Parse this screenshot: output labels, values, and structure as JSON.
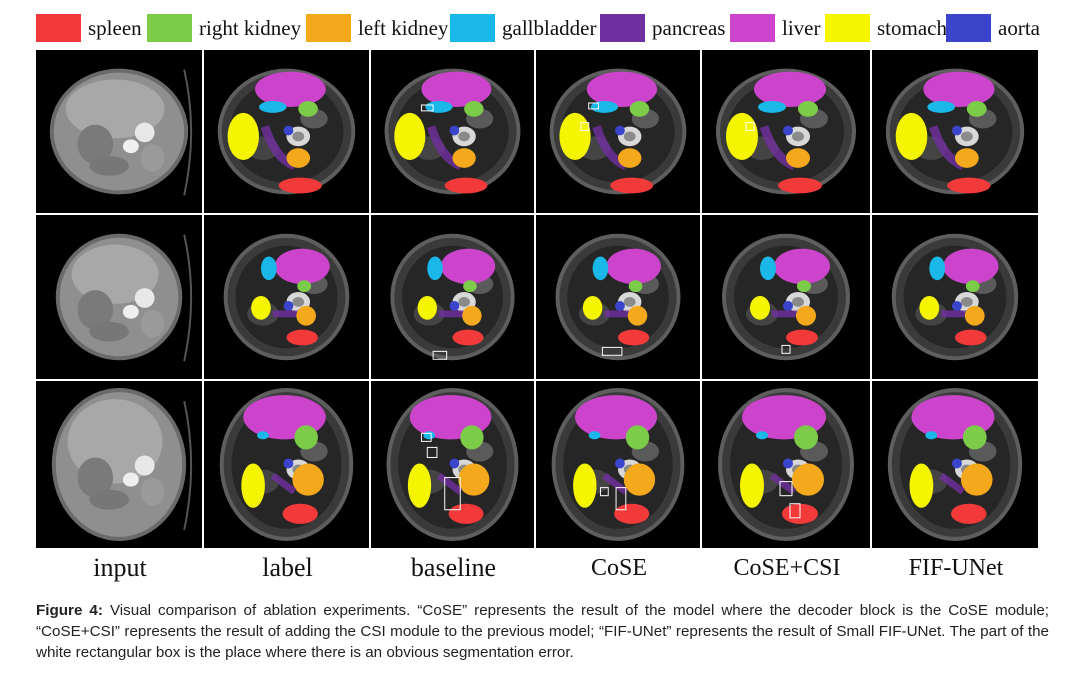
{
  "legend": [
    {
      "label": "spleen",
      "color": "#f33a3a"
    },
    {
      "label": "right kidney",
      "color": "#7ccc49"
    },
    {
      "label": "left kidney",
      "color": "#f4a81b"
    },
    {
      "label": "gallbladder",
      "color": "#1ab8e8"
    },
    {
      "label": "pancreas",
      "color": "#7030a0"
    },
    {
      "label": "liver",
      "color": "#cc44cc"
    },
    {
      "label": "stomach",
      "color": "#f5f500"
    },
    {
      "label": "aorta",
      "color": "#3a45cc"
    }
  ],
  "columns": [
    "input",
    "label",
    "baseline",
    "CoSE",
    "CoSE+CSI",
    "FIF-UNet"
  ],
  "caption": {
    "label": "Figure 4:",
    "text": "Visual comparison of ablation experiments. “CoSE” represents the result of the model where the decoder block is the CoSE module; “CoSE+CSI” represents the result of adding the CSI module to the previous model; “FIF-UNet” represents the result of Small FIF-UNet. The part of the white rectangular box is the place where there is an obvious segmentation error."
  }
}
